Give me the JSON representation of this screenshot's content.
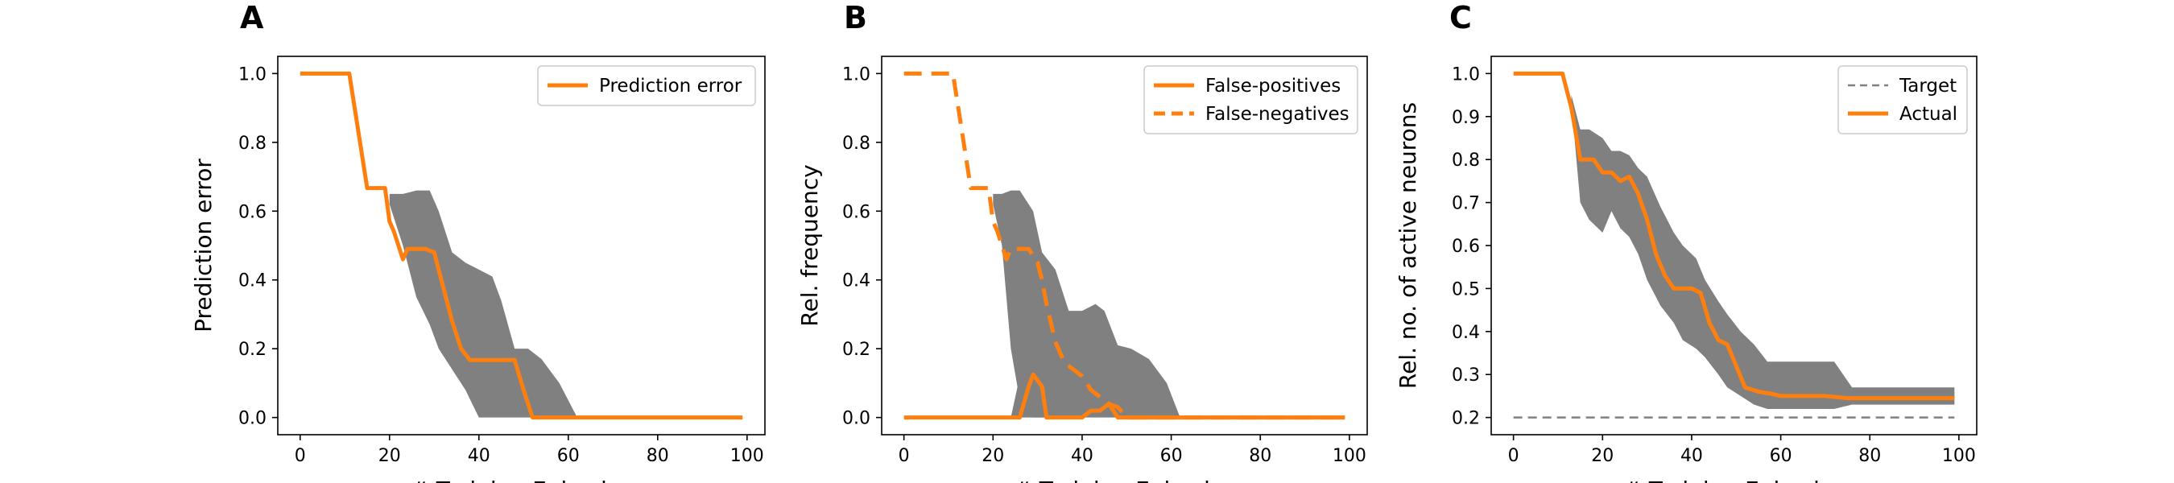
{
  "colors": {
    "series": "#ff7f0e",
    "band": "#808080",
    "target": "#808080",
    "axis": "#000000",
    "legend_border": "#cccccc"
  },
  "chart_data": [
    {
      "panel": "A",
      "type": "line",
      "xlabel": "# Training Episodes",
      "ylabel": "Prediction error",
      "xlim": [
        -5,
        104
      ],
      "ylim": [
        -0.05,
        1.05
      ],
      "xticks": [
        0,
        20,
        40,
        60,
        80,
        100
      ],
      "yticks": [
        0.0,
        0.2,
        0.4,
        0.6,
        0.8,
        1.0
      ],
      "ytick_labels": [
        "0.0",
        "0.2",
        "0.4",
        "0.6",
        "0.8",
        "1.0"
      ],
      "legend": "top-right",
      "grid": false,
      "bands": [
        {
          "x": [
            20,
            23,
            26,
            29,
            31,
            34,
            37,
            40,
            43,
            45,
            48,
            51,
            54,
            58,
            60,
            62
          ],
          "lower": [
            0.62,
            0.5,
            0.35,
            0.27,
            0.2,
            0.14,
            0.08,
            0.0,
            0.0,
            0.0,
            0.0,
            0.0,
            0.0,
            0.0,
            0.0,
            0.0
          ],
          "upper": [
            0.65,
            0.65,
            0.66,
            0.66,
            0.6,
            0.48,
            0.45,
            0.43,
            0.41,
            0.34,
            0.2,
            0.2,
            0.17,
            0.1,
            0.05,
            0.0
          ]
        }
      ],
      "series": [
        {
          "name": "Prediction error",
          "style": "solid",
          "x": [
            0,
            11,
            15,
            19,
            20,
            21,
            23,
            24,
            26,
            28,
            30,
            32,
            34,
            36,
            38,
            40,
            43,
            46,
            48,
            50,
            52,
            55,
            60,
            70,
            80,
            90,
            99
          ],
          "y": [
            1.0,
            1.0,
            0.667,
            0.667,
            0.57,
            0.54,
            0.46,
            0.49,
            0.49,
            0.49,
            0.48,
            0.38,
            0.28,
            0.2,
            0.167,
            0.167,
            0.167,
            0.167,
            0.167,
            0.08,
            0.0,
            0.0,
            0.0,
            0.0,
            0.0,
            0.0,
            0.0
          ]
        }
      ]
    },
    {
      "panel": "B",
      "type": "line",
      "xlabel": "# Training Episodes",
      "ylabel": "Rel. frequency",
      "xlim": [
        -5,
        104
      ],
      "ylim": [
        -0.05,
        1.05
      ],
      "xticks": [
        0,
        20,
        40,
        60,
        80,
        100
      ],
      "yticks": [
        0.0,
        0.2,
        0.4,
        0.6,
        0.8,
        1.0
      ],
      "ytick_labels": [
        "0.0",
        "0.2",
        "0.4",
        "0.6",
        "0.8",
        "1.0"
      ],
      "legend": "top-right",
      "grid": false,
      "bands": [
        {
          "x": [
            20,
            22,
            24,
            26,
            29,
            31,
            34,
            37,
            40,
            43,
            45,
            48,
            51,
            55,
            59,
            62
          ],
          "lower": [
            0.62,
            0.5,
            0.2,
            0.05,
            0.0,
            0.0,
            0.0,
            0.0,
            0.0,
            0.0,
            0.0,
            0.0,
            0.0,
            0.0,
            0.0,
            0.0
          ],
          "upper": [
            0.65,
            0.65,
            0.66,
            0.66,
            0.6,
            0.48,
            0.43,
            0.31,
            0.31,
            0.33,
            0.31,
            0.21,
            0.2,
            0.17,
            0.1,
            0.0
          ]
        },
        {
          "x": [
            24,
            26,
            28,
            30,
            32,
            34
          ],
          "lower": [
            0.0,
            0.0,
            0.0,
            0.0,
            0.0,
            0.0
          ],
          "upper": [
            0.0,
            0.12,
            0.2,
            0.18,
            0.06,
            0.0
          ]
        }
      ],
      "series": [
        {
          "name": "False-positives",
          "style": "solid",
          "x": [
            0,
            24,
            26,
            28,
            29,
            31,
            32,
            34,
            38,
            40,
            42,
            44,
            46,
            48,
            50,
            60,
            70,
            80,
            90,
            99
          ],
          "y": [
            0.0,
            0.0,
            0.0,
            0.09,
            0.125,
            0.09,
            0.0,
            0.0,
            0.0,
            0.0,
            0.02,
            0.02,
            0.04,
            0.0,
            0.0,
            0.0,
            0.0,
            0.0,
            0.0,
            0.0
          ]
        },
        {
          "name": "False-negatives",
          "style": "dashed",
          "x": [
            0,
            11,
            15,
            19,
            20,
            21,
            23,
            24,
            26,
            28,
            30,
            31,
            32,
            34,
            36,
            38,
            40,
            42,
            44,
            46,
            48,
            50,
            55,
            60,
            70,
            80,
            90,
            99
          ],
          "y": [
            1.0,
            1.0,
            0.667,
            0.667,
            0.57,
            0.54,
            0.46,
            0.49,
            0.49,
            0.49,
            0.45,
            0.4,
            0.33,
            0.22,
            0.16,
            0.14,
            0.12,
            0.08,
            0.06,
            0.04,
            0.03,
            0.0,
            0.0,
            0.0,
            0.0,
            0.0,
            0.0,
            0.0
          ]
        }
      ]
    },
    {
      "panel": "C",
      "type": "line",
      "xlabel": "# Training Episodes",
      "ylabel": "Rel. no. of active neurons",
      "xlim": [
        -5,
        104
      ],
      "ylim": [
        0.16,
        1.04
      ],
      "xticks": [
        0,
        20,
        40,
        60,
        80,
        100
      ],
      "yticks": [
        0.2,
        0.3,
        0.4,
        0.5,
        0.6,
        0.7,
        0.8,
        0.9,
        1.0
      ],
      "ytick_labels": [
        "0.2",
        "0.3",
        "0.4",
        "0.5",
        "0.6",
        "0.7",
        "0.8",
        "0.9",
        "1.0"
      ],
      "legend": "top-right",
      "grid": false,
      "bands": [
        {
          "x": [
            13,
            15,
            17,
            20,
            22,
            24,
            26,
            28,
            30,
            33,
            36,
            38,
            41,
            43,
            46,
            48,
            51,
            54,
            57,
            60,
            64,
            68,
            72,
            76,
            80,
            85,
            90,
            95,
            99
          ],
          "lower": [
            0.93,
            0.7,
            0.66,
            0.63,
            0.68,
            0.64,
            0.62,
            0.58,
            0.52,
            0.46,
            0.42,
            0.38,
            0.36,
            0.34,
            0.3,
            0.27,
            0.25,
            0.23,
            0.22,
            0.22,
            0.22,
            0.22,
            0.22,
            0.23,
            0.23,
            0.23,
            0.23,
            0.23,
            0.23
          ],
          "upper": [
            0.95,
            0.87,
            0.87,
            0.85,
            0.82,
            0.82,
            0.81,
            0.78,
            0.76,
            0.69,
            0.63,
            0.6,
            0.57,
            0.52,
            0.47,
            0.44,
            0.4,
            0.37,
            0.33,
            0.33,
            0.33,
            0.33,
            0.33,
            0.27,
            0.27,
            0.27,
            0.27,
            0.27,
            0.27
          ]
        }
      ],
      "series": [
        {
          "name": "Target",
          "style": "dashed-thin",
          "x": [
            0,
            99
          ],
          "y": [
            0.2,
            0.2
          ]
        },
        {
          "name": "Actual",
          "style": "solid",
          "x": [
            0,
            11,
            13,
            15,
            18,
            20,
            22,
            24,
            26,
            28,
            30,
            32,
            34,
            36,
            38,
            40,
            42,
            44,
            46,
            48,
            50,
            52,
            55,
            58,
            60,
            65,
            70,
            75,
            80,
            90,
            99
          ],
          "y": [
            1.0,
            1.0,
            0.92,
            0.8,
            0.8,
            0.77,
            0.77,
            0.75,
            0.76,
            0.72,
            0.66,
            0.58,
            0.53,
            0.5,
            0.5,
            0.5,
            0.49,
            0.42,
            0.38,
            0.37,
            0.32,
            0.27,
            0.26,
            0.255,
            0.25,
            0.25,
            0.25,
            0.245,
            0.245,
            0.245,
            0.245
          ]
        }
      ]
    }
  ]
}
